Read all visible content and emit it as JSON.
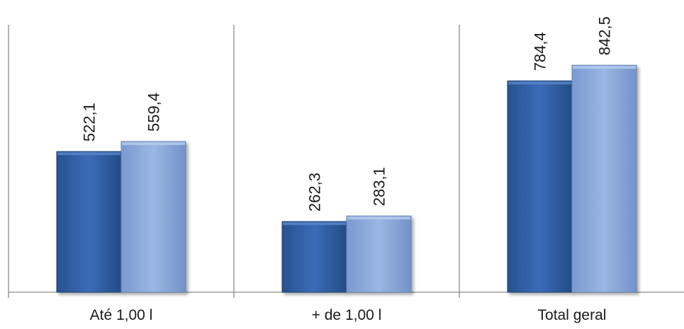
{
  "chart_data": {
    "type": "bar",
    "categories": [
      "Até 1,00 l",
      "+ de 1,00 l",
      "Total geral"
    ],
    "series": [
      {
        "values": [
          522.1,
          262.3,
          784.4
        ],
        "labels": [
          "522,1",
          "262,3",
          "784,4"
        ],
        "color": "#2e5fa8"
      },
      {
        "values": [
          559.4,
          283.1,
          842.5
        ],
        "labels": [
          "559,4",
          "283,1",
          "842,5"
        ],
        "color": "#8aa9dc"
      }
    ],
    "title": "",
    "xlabel": "",
    "ylabel": "",
    "ylim": [
      0,
      1000
    ],
    "grid": false,
    "legend": "none",
    "data_labels": "rotated-vertical"
  }
}
